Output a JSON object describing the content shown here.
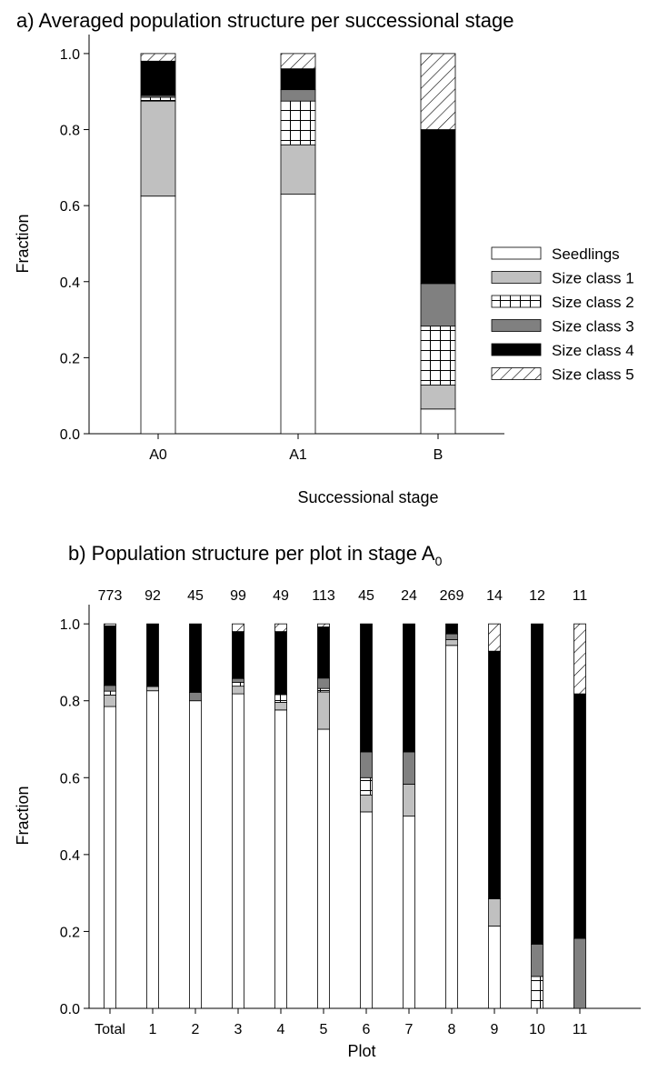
{
  "chart_data": [
    {
      "type": "bar",
      "stacked": true,
      "title": "a) Averaged population structure per successional stage",
      "xlabel": "Successional stage",
      "ylabel": "Fraction",
      "ylim": [
        0,
        1.05
      ],
      "yticks": [
        "0.0",
        "0.2",
        "0.4",
        "0.6",
        "0.8",
        "1.0"
      ],
      "categories": [
        "A0",
        "A1",
        "B"
      ],
      "legend_position": "right",
      "series": [
        {
          "name": "Seedlings",
          "fill": "white",
          "values": [
            0.625,
            0.63,
            0.065
          ]
        },
        {
          "name": "Size class 1",
          "fill": "lightgray",
          "values": [
            0.25,
            0.13,
            0.063
          ]
        },
        {
          "name": "Size class 2",
          "fill": "grid",
          "values": [
            0.01,
            0.115,
            0.155
          ]
        },
        {
          "name": "Size class 3",
          "fill": "darkgray",
          "values": [
            0.005,
            0.03,
            0.112
          ]
        },
        {
          "name": "Size class 4",
          "fill": "black",
          "values": [
            0.09,
            0.055,
            0.405
          ]
        },
        {
          "name": "Size class 5",
          "fill": "hatch",
          "values": [
            0.02,
            0.04,
            0.2
          ]
        }
      ]
    },
    {
      "type": "bar",
      "stacked": true,
      "title": "b) Population structure per plot in stage A",
      "title_subscript": "0",
      "xlabel": "Plot",
      "ylabel": "Fraction",
      "ylim": [
        0,
        1.05
      ],
      "yticks": [
        "0.0",
        "0.2",
        "0.4",
        "0.6",
        "0.8",
        "1.0"
      ],
      "categories": [
        "Total",
        "1",
        "2",
        "3",
        "4",
        "5",
        "6",
        "7",
        "8",
        "9",
        "10",
        "11"
      ],
      "counts": [
        "773",
        "92",
        "45",
        "99",
        "49",
        "113",
        "45",
        "24",
        "269",
        "14",
        "12",
        "11"
      ],
      "series": [
        {
          "name": "Seedlings",
          "fill": "white",
          "values": [
            0.785,
            0.826,
            0.8,
            0.818,
            0.776,
            0.726,
            0.511,
            0.5,
            0.944,
            0.214,
            0.0,
            0.0
          ]
        },
        {
          "name": "Size class 1",
          "fill": "lightgray",
          "values": [
            0.03,
            0.011,
            0.0,
            0.02,
            0.02,
            0.097,
            0.044,
            0.083,
            0.015,
            0.071,
            0.0,
            0.0
          ]
        },
        {
          "name": "Size class 2",
          "fill": "grid",
          "values": [
            0.01,
            0.0,
            0.0,
            0.01,
            0.02,
            0.009,
            0.045,
            0.0,
            0.0,
            0.0,
            0.083,
            0.0
          ]
        },
        {
          "name": "Size class 3",
          "fill": "darkgray",
          "values": [
            0.015,
            0.0,
            0.022,
            0.01,
            0.0,
            0.027,
            0.067,
            0.084,
            0.015,
            0.0,
            0.084,
            0.182
          ]
        },
        {
          "name": "Size class 4",
          "fill": "black",
          "values": [
            0.155,
            0.163,
            0.178,
            0.122,
            0.164,
            0.133,
            0.333,
            0.333,
            0.026,
            0.644,
            0.833,
            0.636
          ]
        },
        {
          "name": "Size class 5",
          "fill": "hatch",
          "values": [
            0.005,
            0.0,
            0.0,
            0.02,
            0.02,
            0.008,
            0.0,
            0.0,
            0.0,
            0.071,
            0.0,
            0.182
          ]
        }
      ]
    }
  ]
}
